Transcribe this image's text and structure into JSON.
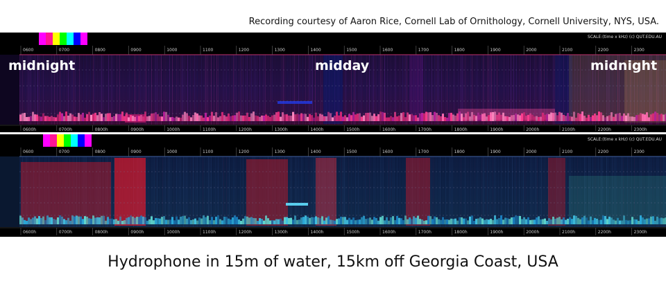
{
  "credit": "Recording courtesy of Aaron Rice, Cornell Lab of Ornithology, Cornell University, NYS, USA.",
  "scale_label": "SCALE:(time x kHz)    (c) QUT.EDU.AU",
  "top_ticks": [
    "0600",
    "0700",
    "0800",
    "0900",
    "1000",
    "1100",
    "1200",
    "1300",
    "1400",
    "1500",
    "1600",
    "1700",
    "1800",
    "1900",
    "2000",
    "2100",
    "2200",
    "2300"
  ],
  "bottom_ticks": [
    "0600h",
    "0700h",
    "0800h",
    "0900h",
    "1000h",
    "1100h",
    "1200h",
    "1300h",
    "1400h",
    "1500h",
    "1600h",
    "1700h",
    "1800h",
    "1900h",
    "2000h",
    "2100h",
    "2200h",
    "2300h"
  ],
  "overlays": {
    "left": "midnight",
    "center": "midday",
    "right": "midnight"
  },
  "caption": "Hydrophone in 15m of water,  15km off Georgia Coast, USA",
  "colors": {
    "background_panel": "#000000",
    "panel1_base": "#1a0f3a",
    "panel1_band": "#ff4fa0",
    "panel2_base": "#0b1e38",
    "panel2_band": "#2aa8d8",
    "panel2_red": "#e0202a",
    "tick_text": "#cfcfcf"
  },
  "legend_swatches": [
    "#ff00ff",
    "#ff1493",
    "#ffff00",
    "#00ff00",
    "#00ffff",
    "#0000ff",
    "#ff00ff"
  ]
}
